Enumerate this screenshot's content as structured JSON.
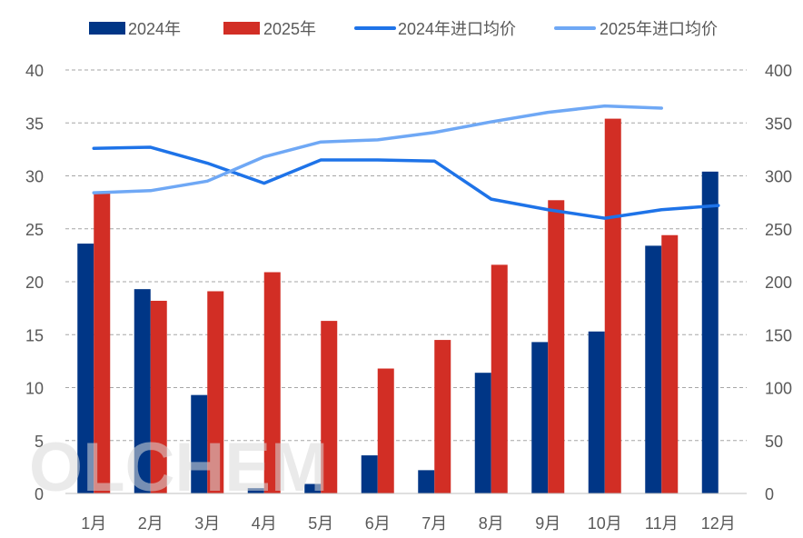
{
  "chart_data": {
    "type": "bar",
    "categories": [
      "1月",
      "2月",
      "3月",
      "4月",
      "5月",
      "6月",
      "7月",
      "8月",
      "9月",
      "10月",
      "11月",
      "12月"
    ],
    "series": [
      {
        "name": "2024年",
        "type": "bar",
        "axis": "left",
        "color": "#003686",
        "values": [
          23.6,
          19.3,
          9.3,
          0.5,
          0.9,
          3.6,
          2.2,
          11.4,
          14.3,
          15.3,
          23.4,
          30.4
        ]
      },
      {
        "name": "2025年",
        "type": "bar",
        "axis": "left",
        "color": "#D22E25",
        "values": [
          28.5,
          18.2,
          19.1,
          20.9,
          16.3,
          11.8,
          14.5,
          21.6,
          27.7,
          35.4,
          24.4,
          null
        ]
      },
      {
        "name": "2024年进口均价",
        "type": "line",
        "axis": "right",
        "color": "#1E73E8",
        "values": [
          326,
          327,
          312,
          293,
          315,
          315,
          314,
          278,
          268,
          260,
          268,
          272
        ]
      },
      {
        "name": "2025年进口均价",
        "type": "line",
        "axis": "right",
        "color": "#6FA8F5",
        "values": [
          284,
          286,
          295,
          318,
          332,
          334,
          341,
          351,
          360,
          366,
          364,
          null
        ]
      }
    ],
    "ylim": [
      0,
      40
    ],
    "y_ticks": [
      "0",
      "5",
      "10",
      "15",
      "20",
      "25",
      "30",
      "35",
      "40"
    ],
    "y2lim": [
      0,
      400
    ],
    "y2_ticks": [
      "0",
      "50",
      "100",
      "150",
      "200",
      "250",
      "300",
      "350",
      "400"
    ],
    "grid": true,
    "legend": "top",
    "title": "",
    "xlabel": "",
    "ylabel": "",
    "y2label": ""
  },
  "watermark": "OLCHEM"
}
